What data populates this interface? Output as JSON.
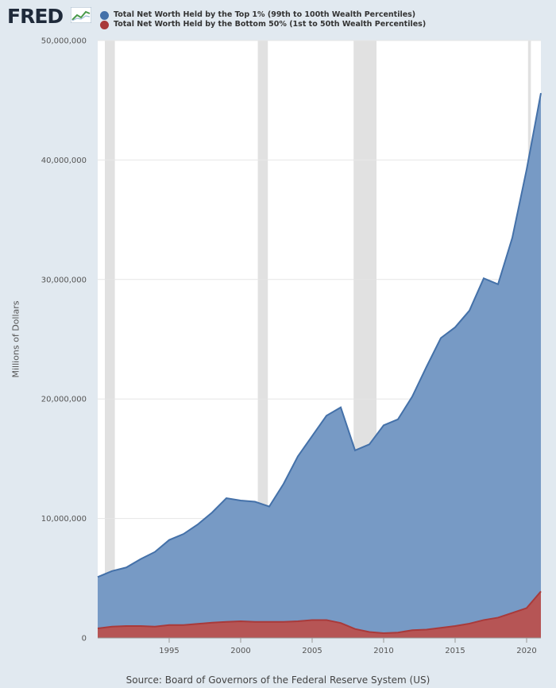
{
  "brand": "FRED",
  "colors": {
    "top": "#4471a9",
    "bottom": "#a93a3a",
    "background": "#e1e9f0"
  },
  "source": "Source: Board of Governors of the Federal Reserve System (US)",
  "chart_data": {
    "type": "area",
    "ylabel": "Millions of Dollars",
    "xlabel": "",
    "xlim": [
      1990.0,
      2021.0
    ],
    "ylim": [
      0,
      50000000
    ],
    "yticks": [
      {
        "value": 0,
        "label": "0"
      },
      {
        "value": 10000000,
        "label": "10,000,000"
      },
      {
        "value": 20000000,
        "label": "20,000,000"
      },
      {
        "value": 30000000,
        "label": "30,000,000"
      },
      {
        "value": 40000000,
        "label": "40,000,000"
      },
      {
        "value": 50000000,
        "label": "50,000,000"
      }
    ],
    "xticks": [
      {
        "value": 1995,
        "label": "1995"
      },
      {
        "value": 2000,
        "label": "2000"
      },
      {
        "value": 2005,
        "label": "2005"
      },
      {
        "value": 2010,
        "label": "2010"
      },
      {
        "value": 2015,
        "label": "2015"
      },
      {
        "value": 2020,
        "label": "2020"
      }
    ],
    "recessions": [
      [
        1990.5,
        1991.2
      ],
      [
        2001.2,
        2001.9
      ],
      [
        2007.9,
        2009.5
      ],
      [
        2020.1,
        2020.3
      ]
    ],
    "x": [
      1990,
      1991,
      1992,
      1993,
      1994,
      1995,
      1996,
      1997,
      1998,
      1999,
      2000,
      2001,
      2002,
      2003,
      2004,
      2005,
      2006,
      2007,
      2008,
      2009,
      2010,
      2011,
      2012,
      2013,
      2014,
      2015,
      2016,
      2017,
      2018,
      2019,
      2020,
      2021
    ],
    "series": [
      {
        "name": "Total Net Worth Held by the Top 1% (99th to 100th Wealth Percentiles)",
        "values": [
          5100000,
          5600000,
          5900000,
          6600000,
          7200000,
          8200000,
          8700000,
          9500000,
          10500000,
          11700000,
          11500000,
          11400000,
          11000000,
          12900000,
          15200000,
          16900000,
          18600000,
          19300000,
          15700000,
          16200000,
          17800000,
          18300000,
          20200000,
          22700000,
          25100000,
          26000000,
          27400000,
          30100000,
          29600000,
          33500000,
          39200000,
          45600000
        ]
      },
      {
        "name": "Total Net Worth Held by the Bottom 50% (1st to 50th Wealth Percentiles)",
        "values": [
          800000,
          950000,
          1000000,
          1000000,
          950000,
          1080000,
          1080000,
          1180000,
          1280000,
          1350000,
          1400000,
          1350000,
          1350000,
          1350000,
          1400000,
          1500000,
          1500000,
          1250000,
          750000,
          500000,
          400000,
          450000,
          650000,
          700000,
          850000,
          1000000,
          1200000,
          1500000,
          1700000,
          2100000,
          2500000,
          3900000
        ]
      }
    ]
  }
}
